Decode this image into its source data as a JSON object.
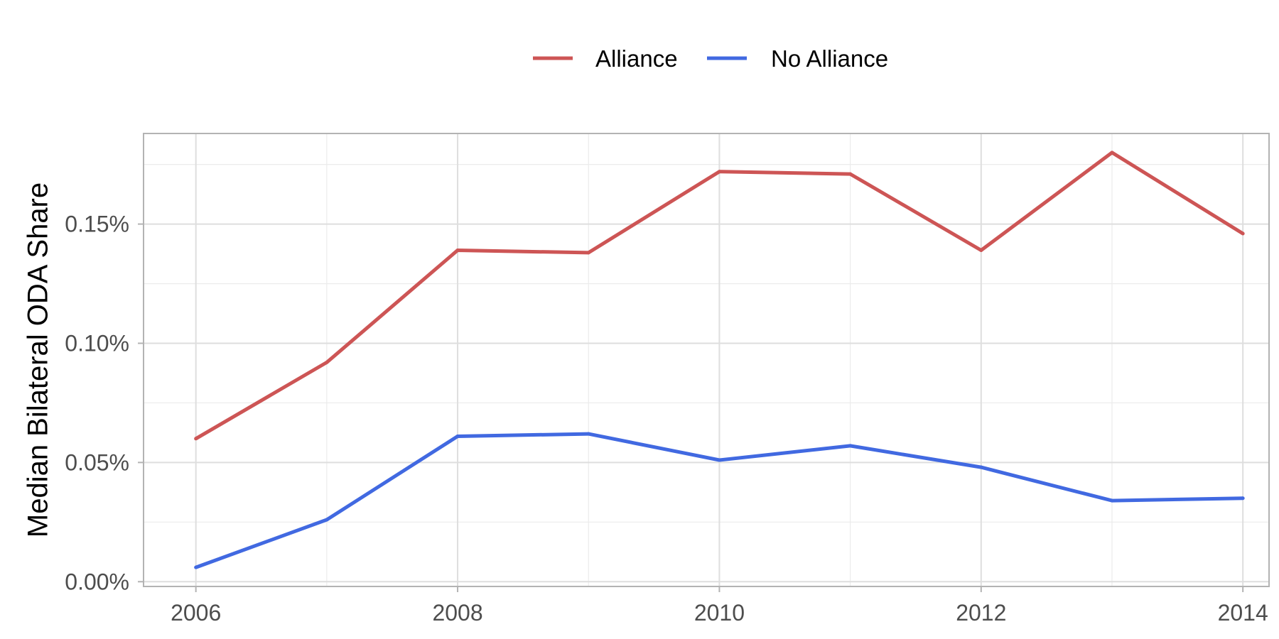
{
  "chart_data": {
    "type": "line",
    "x": [
      2006,
      2007,
      2008,
      2009,
      2010,
      2011,
      2012,
      2013,
      2014
    ],
    "series": [
      {
        "name": "Alliance",
        "color": "#cd5555",
        "values": [
          0.06,
          0.092,
          0.139,
          0.138,
          0.172,
          0.171,
          0.139,
          0.18,
          0.146
        ]
      },
      {
        "name": "No Alliance",
        "color": "#4169e1",
        "values": [
          0.006,
          0.026,
          0.061,
          0.062,
          0.051,
          0.057,
          0.048,
          0.034,
          0.035
        ]
      }
    ],
    "title": "",
    "xlabel": "",
    "ylabel": "Median Bilateral ODA Share",
    "xlim": [
      2005.6,
      2014.2
    ],
    "ylim": [
      -0.002,
      0.188
    ],
    "x_ticks": [
      2006,
      2008,
      2010,
      2012,
      2014
    ],
    "x_tick_labels": [
      "2006",
      "2008",
      "2010",
      "2012",
      "2014"
    ],
    "x_minor_ticks": [
      2007,
      2009,
      2011,
      2013
    ],
    "y_ticks": [
      0.0,
      0.05,
      0.1,
      0.15
    ],
    "y_tick_labels": [
      "0.00%",
      "0.05%",
      "0.10%",
      "0.15%"
    ],
    "y_minor_ticks": [
      0.025,
      0.075,
      0.125,
      0.175
    ],
    "grid": true,
    "legend_position": "top"
  }
}
